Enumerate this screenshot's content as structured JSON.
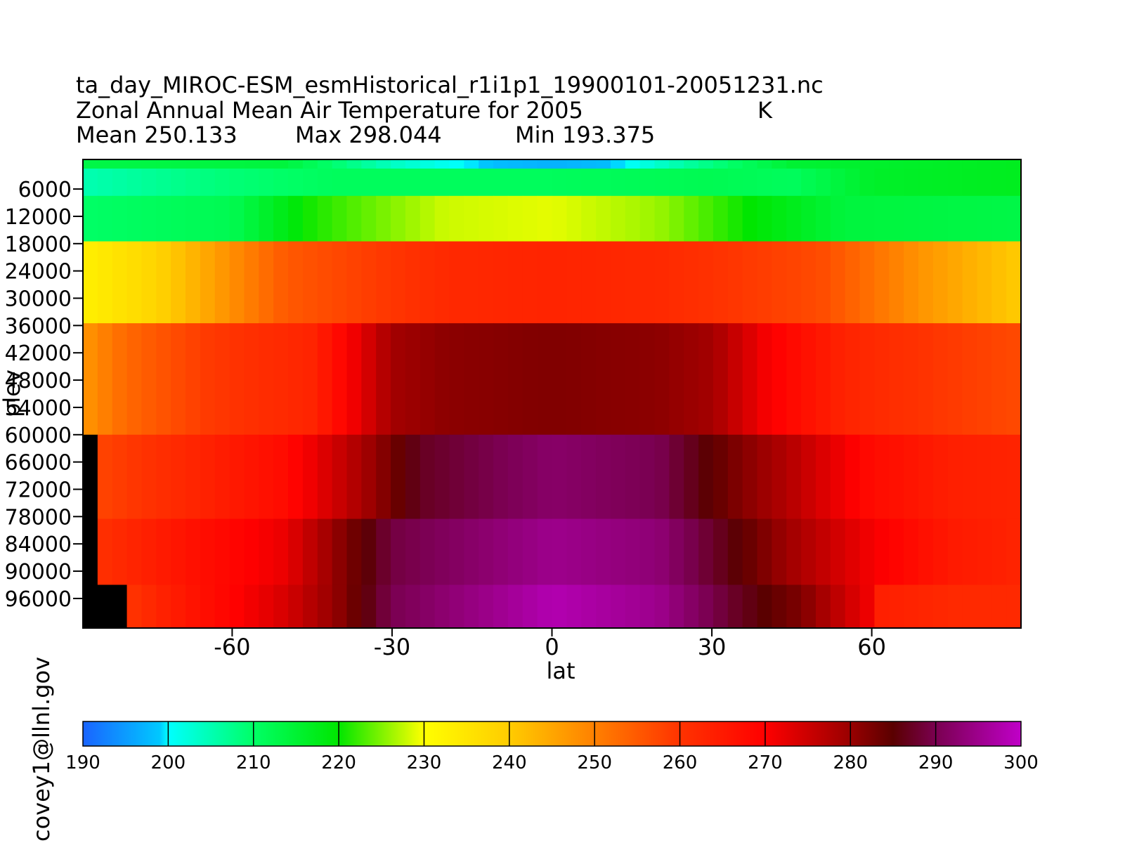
{
  "header": {
    "filename": "ta_day_MIROC-ESM_esmHistorical_r1i1p1_19900101-20051231.nc",
    "long_name": "Zonal Annual Mean Air Temperature for 2005",
    "units": "K",
    "mean_label": "Mean 250.133",
    "max_label": "Max 298.044",
    "min_label": "Min 193.375"
  },
  "credit": "covey1@llnl.gov",
  "chart_data": {
    "type": "heatmap",
    "title": "Zonal Annual Mean Air Temperature for 2005",
    "units": "K",
    "xlabel": "lat",
    "ylabel": "plev",
    "x_ticks": [
      -60,
      -30,
      0,
      30,
      60
    ],
    "y_ticks": [
      6000,
      12000,
      18000,
      24000,
      30000,
      36000,
      42000,
      48000,
      54000,
      60000,
      66000,
      72000,
      78000,
      84000,
      90000,
      96000
    ],
    "xlim": [
      -88,
      88
    ],
    "ylim": [
      -500,
      102500
    ],
    "y_inverted": true,
    "missing_color": "#000000",
    "mean": 250.133,
    "max": 298.044,
    "min": 193.375,
    "levels": [
      {
        "plev": 1000,
        "top": -500,
        "bottom": 1500,
        "lat_min": -88,
        "profile": [
          [
            -88,
            213
          ],
          [
            -50,
            214
          ],
          [
            -30,
            204
          ],
          [
            -10,
            198
          ],
          [
            0,
            197
          ],
          [
            10,
            198
          ],
          [
            25,
            206
          ],
          [
            45,
            215
          ],
          [
            88,
            217
          ]
        ]
      },
      {
        "plev": 5000,
        "top": 1500,
        "bottom": 7500,
        "lat_min": -88,
        "profile": [
          [
            -88,
            205
          ],
          [
            -60,
            209
          ],
          [
            -40,
            211
          ],
          [
            0,
            211
          ],
          [
            30,
            212
          ],
          [
            45,
            211
          ],
          [
            60,
            216
          ],
          [
            88,
            217
          ]
        ]
      },
      {
        "plev": 10000,
        "top": 7500,
        "bottom": 17500,
        "lat_min": -88,
        "profile": [
          [
            -88,
            210
          ],
          [
            -60,
            212
          ],
          [
            -45,
            221
          ],
          [
            -20,
            228
          ],
          [
            0,
            229
          ],
          [
            20,
            226
          ],
          [
            40,
            219
          ],
          [
            55,
            214
          ],
          [
            88,
            213
          ]
        ]
      },
      {
        "plev": 20000,
        "top": 17500,
        "bottom": 35500,
        "lat_min": -88,
        "profile": [
          [
            -88,
            233
          ],
          [
            -75,
            238
          ],
          [
            -50,
            255
          ],
          [
            -20,
            262
          ],
          [
            0,
            263
          ],
          [
            20,
            262
          ],
          [
            50,
            257
          ],
          [
            70,
            247
          ],
          [
            88,
            240
          ]
        ]
      },
      {
        "plev": 50000,
        "top": 35500,
        "bottom": 60000,
        "lat_min": -88,
        "profile": [
          [
            -88,
            247
          ],
          [
            -80,
            253
          ],
          [
            -65,
            259
          ],
          [
            -45,
            263
          ],
          [
            -30,
            279
          ],
          [
            -20,
            281
          ],
          [
            0,
            282
          ],
          [
            20,
            281
          ],
          [
            30,
            279
          ],
          [
            40,
            271
          ],
          [
            55,
            263
          ],
          [
            70,
            260
          ],
          [
            88,
            257
          ]
        ]
      },
      {
        "plev": 70000,
        "top": 60000,
        "bottom": 78500,
        "lat_min": -84,
        "profile": [
          [
            -84,
            258
          ],
          [
            -70,
            262
          ],
          [
            -50,
            268
          ],
          [
            -35,
            279
          ],
          [
            -25,
            287
          ],
          [
            0,
            292
          ],
          [
            20,
            290
          ],
          [
            35,
            282
          ],
          [
            45,
            277
          ],
          [
            60,
            268
          ],
          [
            75,
            264
          ],
          [
            88,
            263
          ]
        ]
      },
      {
        "plev": 85000,
        "top": 78500,
        "bottom": 93000,
        "lat_min": -84,
        "profile": [
          [
            -84,
            261
          ],
          [
            -70,
            266
          ],
          [
            -50,
            272
          ],
          [
            -40,
            281
          ],
          [
            -30,
            289
          ],
          [
            0,
            295
          ],
          [
            20,
            293
          ],
          [
            35,
            285
          ],
          [
            45,
            279
          ],
          [
            60,
            271
          ],
          [
            75,
            265
          ],
          [
            88,
            263
          ]
        ]
      },
      {
        "plev": 92500,
        "top": 93000,
        "bottom": 102500,
        "lat_min": -81,
        "profile": [
          [
            -81,
            259
          ],
          [
            -70,
            265
          ],
          [
            -50,
            274
          ],
          [
            -40,
            281
          ],
          [
            -30,
            290
          ],
          [
            0,
            298
          ],
          [
            20,
            295
          ],
          [
            35,
            287
          ],
          [
            47,
            282
          ],
          [
            60,
            271
          ],
          [
            61,
            264
          ],
          [
            75,
            262
          ],
          [
            88,
            262
          ]
        ]
      }
    ],
    "colorbar": {
      "ticks": [
        190,
        200,
        210,
        220,
        230,
        240,
        250,
        260,
        270,
        280,
        290,
        300
      ],
      "stops": [
        {
          "value": 190,
          "color": "#1a64ff"
        },
        {
          "value": 199,
          "color": "#00c8ff"
        },
        {
          "value": 200,
          "color": "#00ffff"
        },
        {
          "value": 210,
          "color": "#00ff66"
        },
        {
          "value": 220,
          "color": "#00e600"
        },
        {
          "value": 230,
          "color": "#ffff00"
        },
        {
          "value": 240,
          "color": "#ffcc00"
        },
        {
          "value": 250,
          "color": "#ff8000"
        },
        {
          "value": 260,
          "color": "#ff3300"
        },
        {
          "value": 270,
          "color": "#ff0000"
        },
        {
          "value": 280,
          "color": "#990000"
        },
        {
          "value": 285,
          "color": "#5a0000"
        },
        {
          "value": 290,
          "color": "#7a0050"
        },
        {
          "value": 300,
          "color": "#c000c8"
        }
      ]
    }
  }
}
